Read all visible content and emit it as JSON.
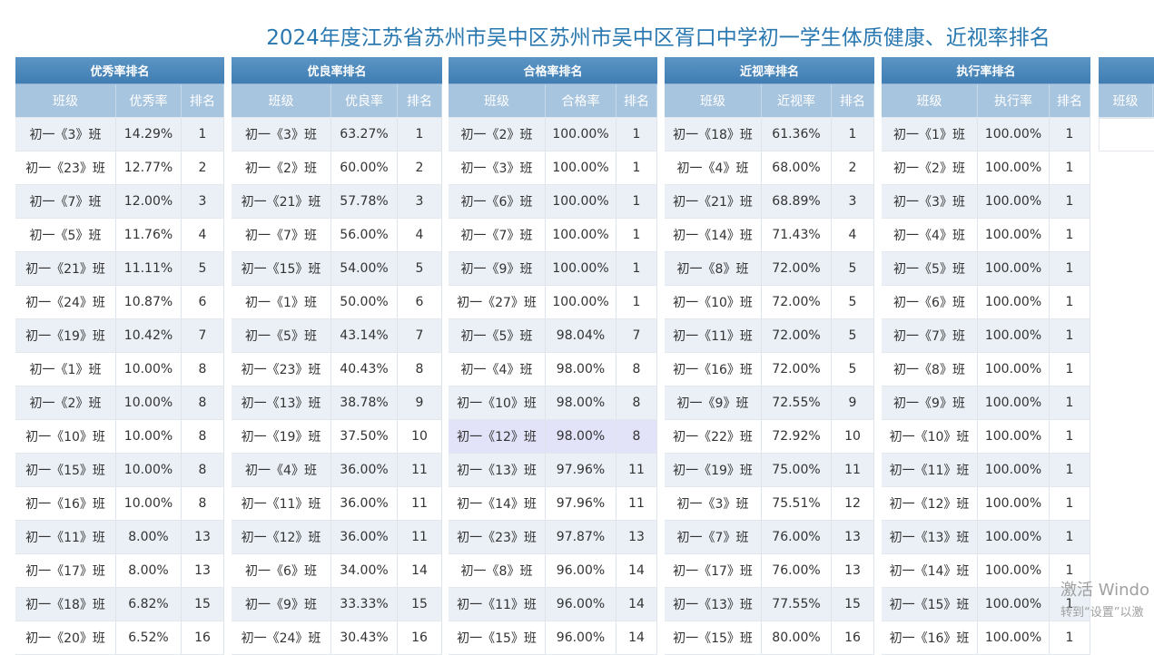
{
  "title": "2024年度江苏省苏州市吴中区苏州市吴中区胥口中学初一学生体质健康、近视率排名",
  "tables": [
    {
      "title": "优秀率排名",
      "columns": [
        "班级",
        "优秀率",
        "排名"
      ],
      "rows": [
        [
          "初一《3》班",
          "14.29%",
          1
        ],
        [
          "初一《23》班",
          "12.77%",
          2
        ],
        [
          "初一《7》班",
          "12.00%",
          3
        ],
        [
          "初一《5》班",
          "11.76%",
          4
        ],
        [
          "初一《21》班",
          "11.11%",
          5
        ],
        [
          "初一《24》班",
          "10.87%",
          6
        ],
        [
          "初一《19》班",
          "10.42%",
          7
        ],
        [
          "初一《1》班",
          "10.00%",
          8
        ],
        [
          "初一《2》班",
          "10.00%",
          8
        ],
        [
          "初一《10》班",
          "10.00%",
          8
        ],
        [
          "初一《15》班",
          "10.00%",
          8
        ],
        [
          "初一《16》班",
          "10.00%",
          8
        ],
        [
          "初一《11》班",
          "8.00%",
          13
        ],
        [
          "初一《17》班",
          "8.00%",
          13
        ],
        [
          "初一《18》班",
          "6.82%",
          15
        ],
        [
          "初一《20》班",
          "6.52%",
          16
        ]
      ]
    },
    {
      "title": "优良率排名",
      "columns": [
        "班级",
        "优良率",
        "排名"
      ],
      "rows": [
        [
          "初一《3》班",
          "63.27%",
          1
        ],
        [
          "初一《2》班",
          "60.00%",
          2
        ],
        [
          "初一《21》班",
          "57.78%",
          3
        ],
        [
          "初一《7》班",
          "56.00%",
          4
        ],
        [
          "初一《15》班",
          "54.00%",
          5
        ],
        [
          "初一《1》班",
          "50.00%",
          6
        ],
        [
          "初一《5》班",
          "43.14%",
          7
        ],
        [
          "初一《23》班",
          "40.43%",
          8
        ],
        [
          "初一《13》班",
          "38.78%",
          9
        ],
        [
          "初一《19》班",
          "37.50%",
          10
        ],
        [
          "初一《4》班",
          "36.00%",
          11
        ],
        [
          "初一《11》班",
          "36.00%",
          11
        ],
        [
          "初一《12》班",
          "36.00%",
          11
        ],
        [
          "初一《6》班",
          "34.00%",
          14
        ],
        [
          "初一《9》班",
          "33.33%",
          15
        ],
        [
          "初一《24》班",
          "30.43%",
          16
        ]
      ]
    },
    {
      "title": "合格率排名",
      "columns": [
        "班级",
        "合格率",
        "排名"
      ],
      "rows": [
        [
          "初一《2》班",
          "100.00%",
          1
        ],
        [
          "初一《3》班",
          "100.00%",
          1
        ],
        [
          "初一《6》班",
          "100.00%",
          1
        ],
        [
          "初一《7》班",
          "100.00%",
          1
        ],
        [
          "初一《9》班",
          "100.00%",
          1
        ],
        [
          "初一《27》班",
          "100.00%",
          1
        ],
        [
          "初一《5》班",
          "98.04%",
          7
        ],
        [
          "初一《4》班",
          "98.00%",
          8
        ],
        [
          "初一《10》班",
          "98.00%",
          8
        ],
        [
          "初一《12》班",
          "98.00%",
          8
        ],
        [
          "初一《13》班",
          "97.96%",
          11
        ],
        [
          "初一《14》班",
          "97.96%",
          11
        ],
        [
          "初一《23》班",
          "97.87%",
          13
        ],
        [
          "初一《8》班",
          "96.00%",
          14
        ],
        [
          "初一《11》班",
          "96.00%",
          14
        ],
        [
          "初一《15》班",
          "96.00%",
          14
        ]
      ]
    },
    {
      "title": "近视率排名",
      "columns": [
        "班级",
        "近视率",
        "排名"
      ],
      "rows": [
        [
          "初一《18》班",
          "61.36%",
          1
        ],
        [
          "初一《4》班",
          "68.00%",
          2
        ],
        [
          "初一《21》班",
          "68.89%",
          3
        ],
        [
          "初一《14》班",
          "71.43%",
          4
        ],
        [
          "初一《8》班",
          "72.00%",
          5
        ],
        [
          "初一《10》班",
          "72.00%",
          5
        ],
        [
          "初一《11》班",
          "72.00%",
          5
        ],
        [
          "初一《16》班",
          "72.00%",
          5
        ],
        [
          "初一《9》班",
          "72.55%",
          9
        ],
        [
          "初一《22》班",
          "72.92%",
          10
        ],
        [
          "初一《19》班",
          "75.00%",
          11
        ],
        [
          "初一《3》班",
          "75.51%",
          12
        ],
        [
          "初一《7》班",
          "76.00%",
          13
        ],
        [
          "初一《17》班",
          "76.00%",
          13
        ],
        [
          "初一《13》班",
          "77.55%",
          15
        ],
        [
          "初一《15》班",
          "80.00%",
          16
        ]
      ]
    },
    {
      "title": "执行率排名",
      "columns": [
        "班级",
        "执行率",
        "排名"
      ],
      "rows": [
        [
          "初一《1》班",
          "100.00%",
          1
        ],
        [
          "初一《2》班",
          "100.00%",
          1
        ],
        [
          "初一《3》班",
          "100.00%",
          1
        ],
        [
          "初一《4》班",
          "100.00%",
          1
        ],
        [
          "初一《5》班",
          "100.00%",
          1
        ],
        [
          "初一《6》班",
          "100.00%",
          1
        ],
        [
          "初一《7》班",
          "100.00%",
          1
        ],
        [
          "初一《8》班",
          "100.00%",
          1
        ],
        [
          "初一《9》班",
          "100.00%",
          1
        ],
        [
          "初一《10》班",
          "100.00%",
          1
        ],
        [
          "初一《11》班",
          "100.00%",
          1
        ],
        [
          "初一《12》班",
          "100.00%",
          1
        ],
        [
          "初一《13》班",
          "100.00%",
          1
        ],
        [
          "初一《14》班",
          "100.00%",
          1
        ],
        [
          "初一《15》班",
          "100.00%",
          1
        ],
        [
          "初一《16》班",
          "100.00%",
          1
        ]
      ]
    }
  ],
  "partial_table": {
    "columns": [
      "班级"
    ]
  },
  "watermark": [
    "激活 Windo",
    "转到“设置”以激"
  ]
}
